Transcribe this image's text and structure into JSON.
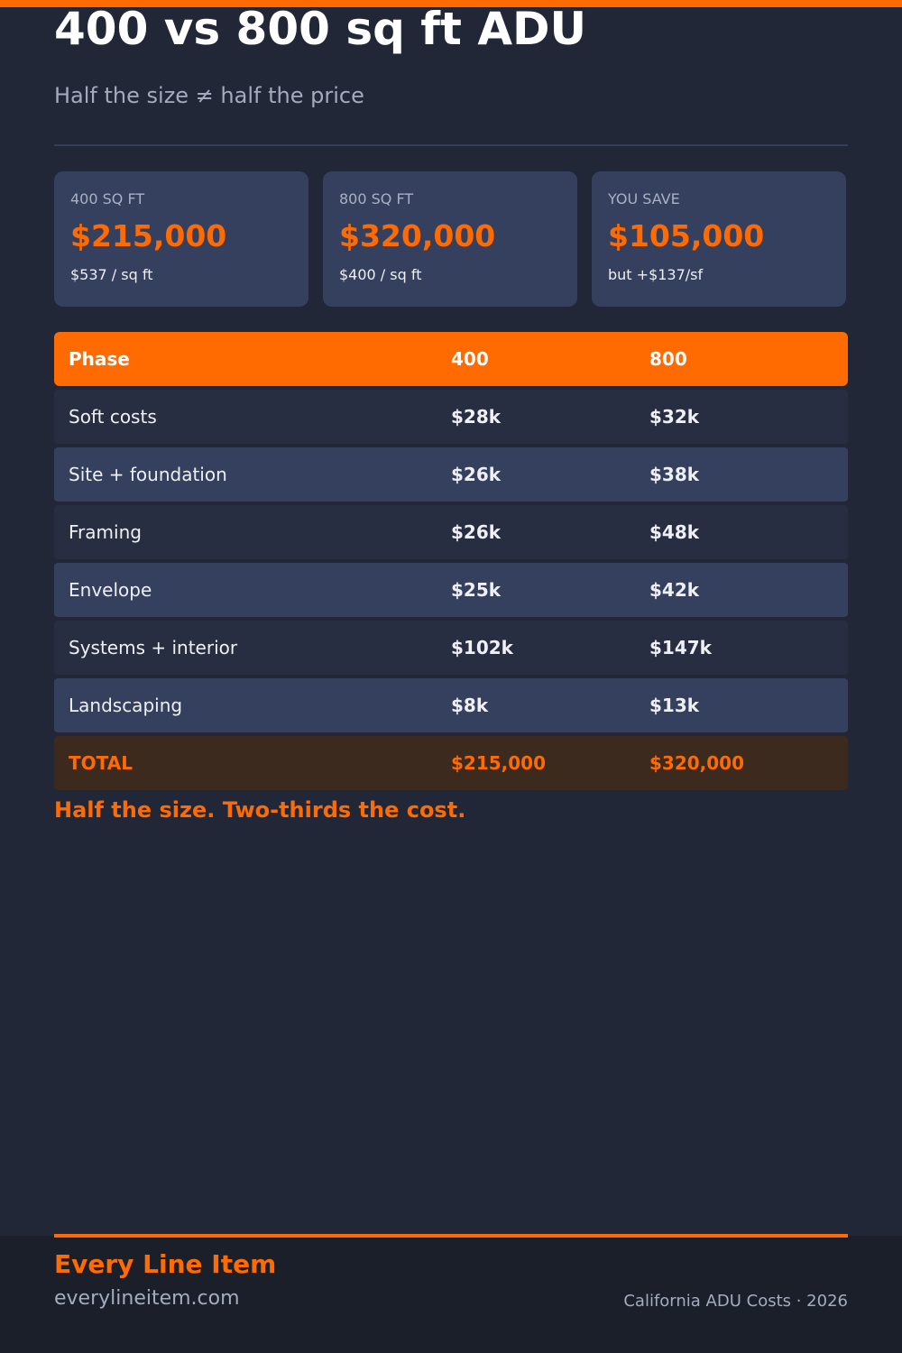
{
  "colors": {
    "accent": "#ff6b00",
    "background": "#212736",
    "card": "#353f5e",
    "footer": "#1b1f2a"
  },
  "header": {
    "title": "400 vs 800 sq ft ADU",
    "subtitle": "Half the size ≠ half the price"
  },
  "cards": [
    {
      "label": "400 SQ FT",
      "value": "$215,000",
      "note": "$537 / sq ft"
    },
    {
      "label": "800 SQ FT",
      "value": "$320,000",
      "note": "$400 / sq ft"
    },
    {
      "label": "YOU SAVE",
      "value": "$105,000",
      "note": "but +$137/sf"
    }
  ],
  "table": {
    "headers": [
      "Phase",
      "400",
      "800"
    ],
    "rows": [
      [
        "Soft costs",
        "$28k",
        "$32k"
      ],
      [
        "Site + foundation",
        "$26k",
        "$38k"
      ],
      [
        "Framing",
        "$26k",
        "$48k"
      ],
      [
        "Envelope",
        "$25k",
        "$42k"
      ],
      [
        "Systems + interior",
        "$102k",
        "$147k"
      ],
      [
        "Landscaping",
        "$8k",
        "$13k"
      ]
    ],
    "total": [
      "TOTAL",
      "$215,000",
      "$320,000"
    ]
  },
  "tagline": "Half the size. Two-thirds the cost.",
  "footer": {
    "brand": "Every Line Item",
    "site": "everylineitem.com",
    "source": "California ADU Costs · 2026"
  }
}
